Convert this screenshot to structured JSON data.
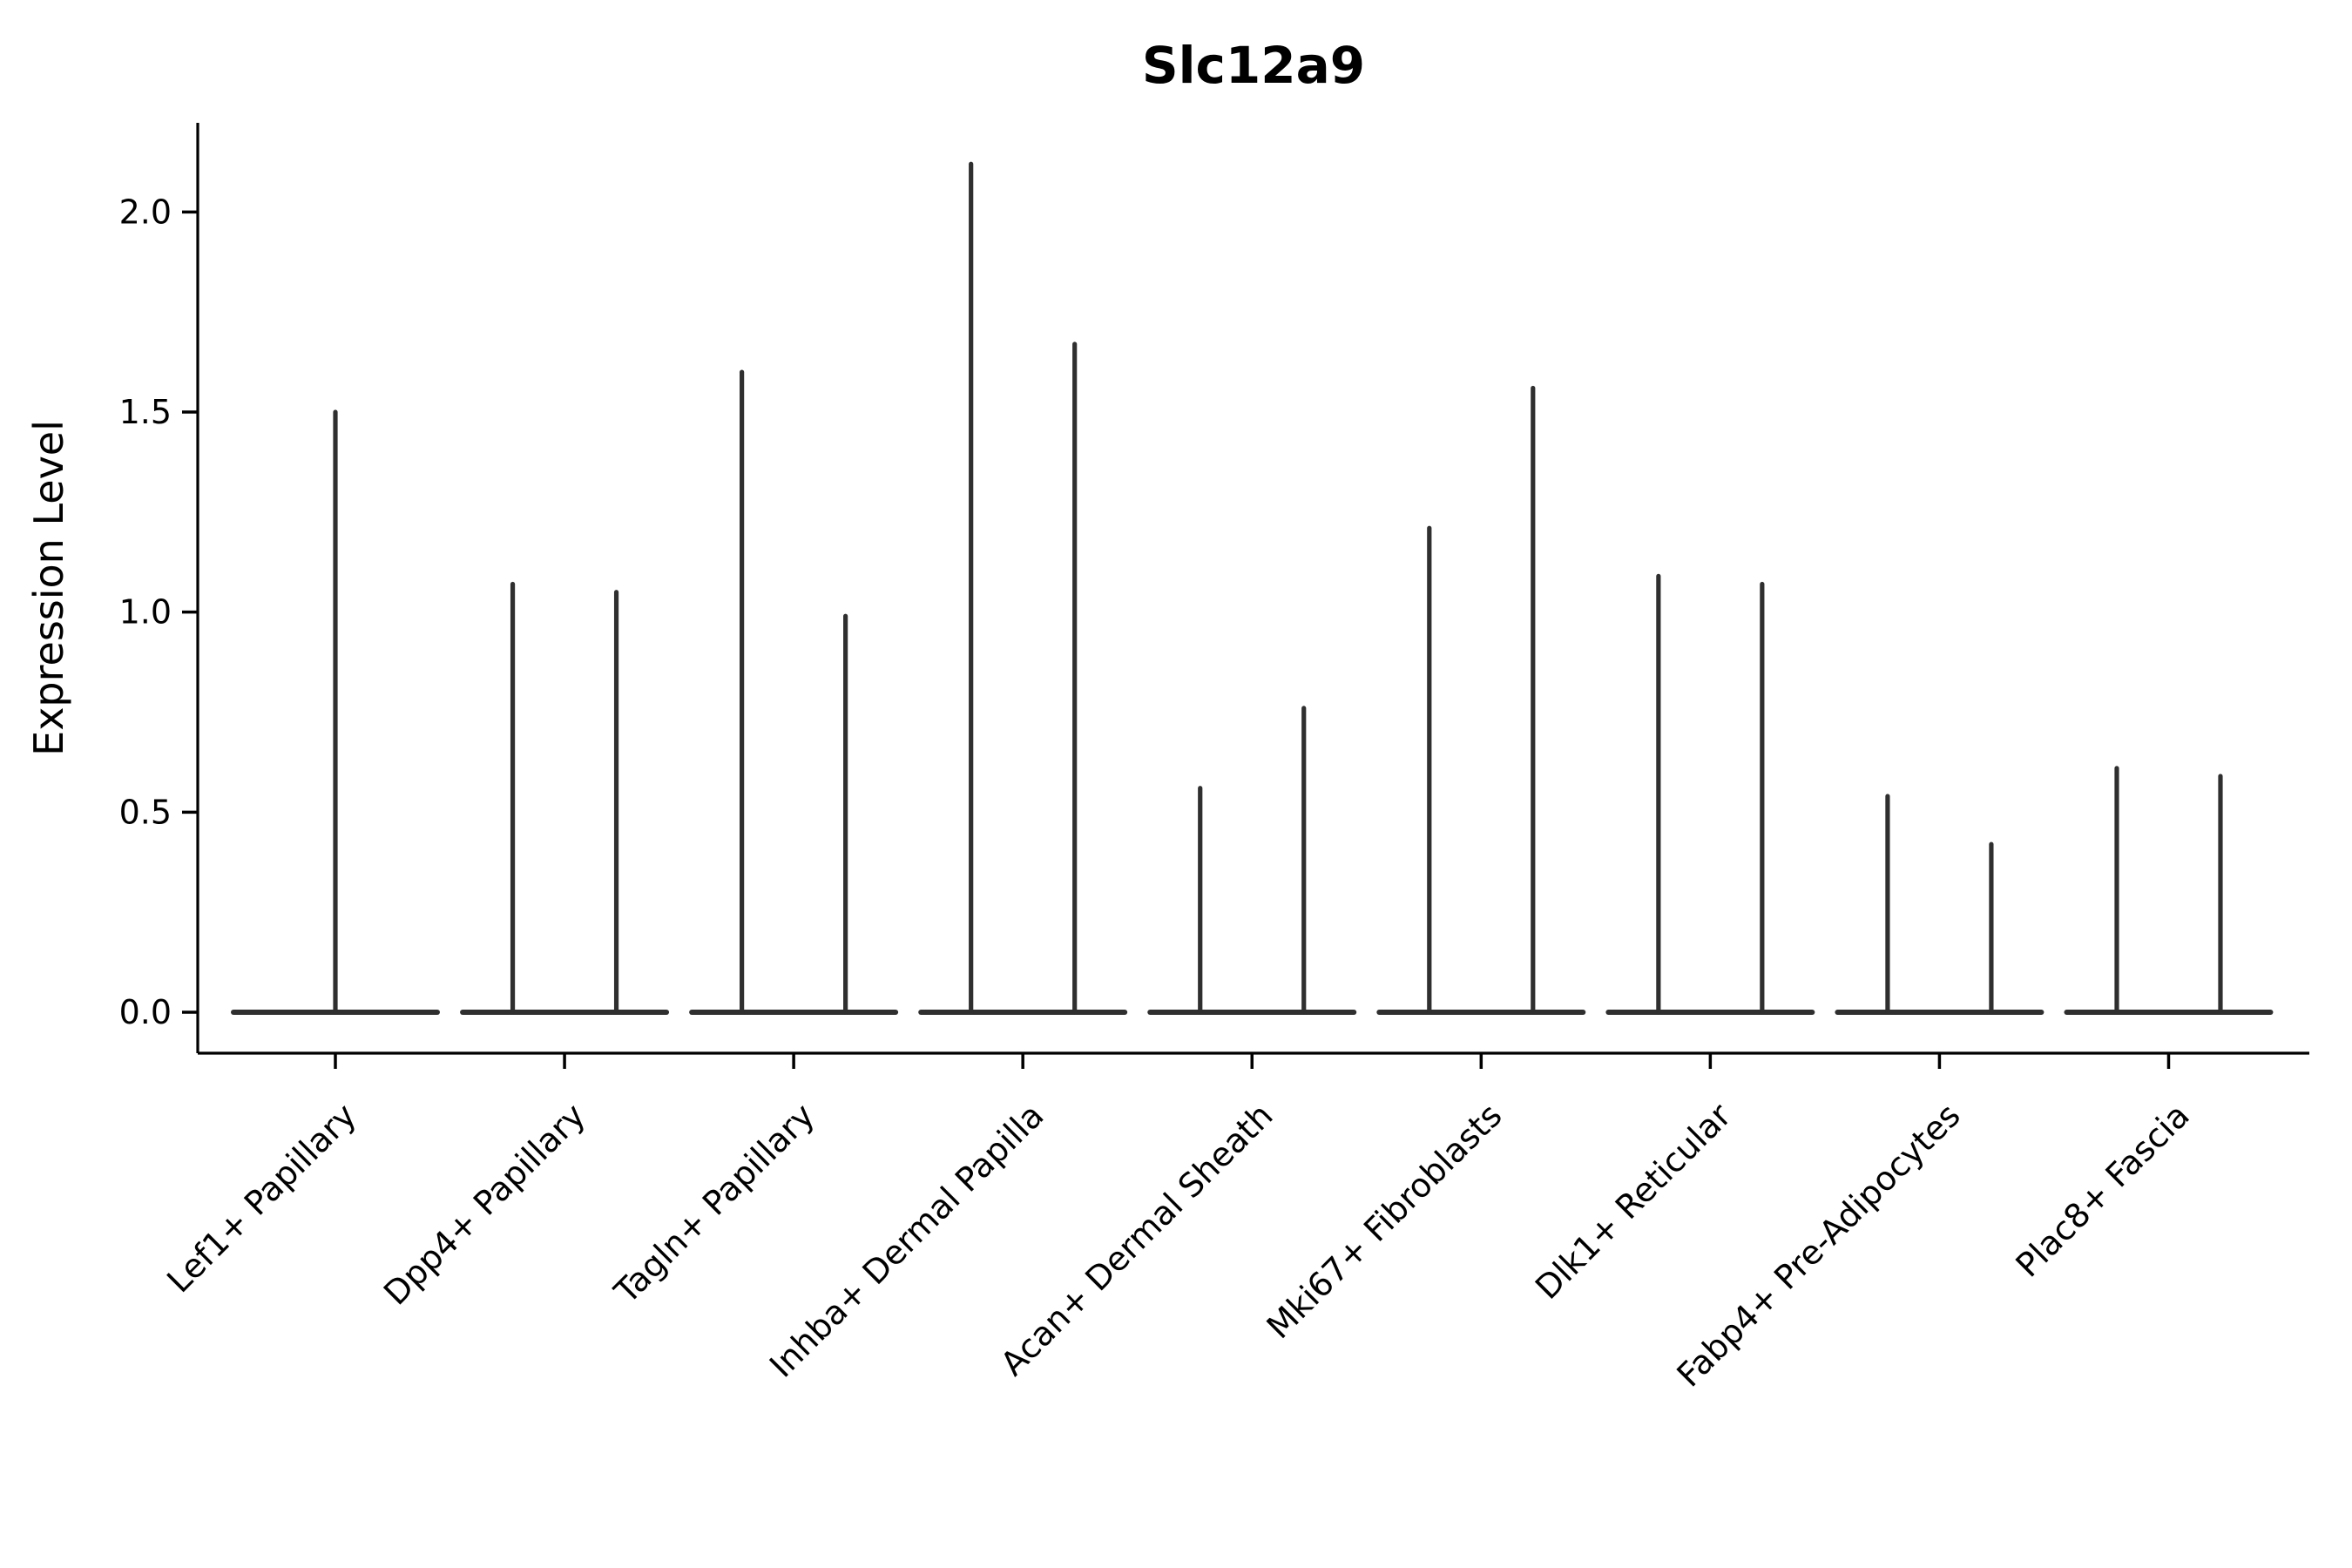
{
  "chart_data": {
    "type": "violin",
    "title": "Slc12a9",
    "xlabel": "",
    "ylabel": "Expression Level",
    "ylim": [
      0,
      2.22
    ],
    "grid": false,
    "legend": "none",
    "yticks": [
      0.0,
      0.5,
      1.0,
      1.5,
      2.0
    ],
    "ytick_labels": [
      "0.0",
      "0.5",
      "1.0",
      "1.5",
      "2.0"
    ],
    "categories": [
      "Lef1+ Papillary",
      "Dpp4+ Papillary",
      "Tagln+ Papillary",
      "Inhba+ Dermal Papilla",
      "Acan+ Dermal Sheath",
      "Mki67+ Fibroblasts",
      "Dlk1+ Reticular",
      "Fabp4+ Pre-Adipocytes",
      "Plac8+ Fascia"
    ],
    "groups": [
      {
        "label": "Lef1+ Papillary",
        "violin_max": [
          1.5
        ],
        "baseline_value": 0.0
      },
      {
        "label": "Dpp4+ Papillary",
        "violin_max": [
          1.07,
          1.05
        ],
        "baseline_value": 0.0
      },
      {
        "label": "Tagln+ Papillary",
        "violin_max": [
          1.6,
          0.99
        ],
        "baseline_value": 0.0
      },
      {
        "label": "Inhba+ Dermal Papilla",
        "violin_max": [
          2.12,
          1.67
        ],
        "baseline_value": 0.0
      },
      {
        "label": "Acan+ Dermal Sheath",
        "violin_max": [
          0.56,
          0.76
        ],
        "baseline_value": 0.0
      },
      {
        "label": "Mki67+ Fibroblasts",
        "violin_max": [
          1.21,
          1.56
        ],
        "baseline_value": 0.0
      },
      {
        "label": "Dlk1+ Reticular",
        "violin_max": [
          1.09,
          1.07
        ],
        "baseline_value": 0.0
      },
      {
        "label": "Fabp4+ Pre-Adipocytes",
        "violin_max": [
          0.54,
          0.42
        ],
        "baseline_value": 0.0
      },
      {
        "label": "Plac8+ Fascia",
        "violin_max": [
          0.61,
          0.59
        ],
        "baseline_value": 0.0
      }
    ],
    "colors": {
      "violin_stroke": "#2f2f2f",
      "axis": "#000000",
      "text": "#000000",
      "background": "#ffffff"
    }
  }
}
